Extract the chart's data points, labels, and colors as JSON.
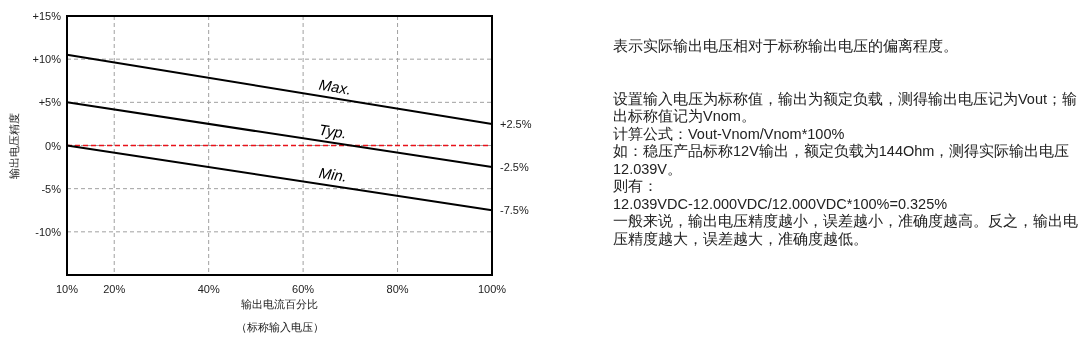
{
  "chart_data": {
    "type": "line",
    "xlabel": "输出电流百分比",
    "ylabel": "输出电压精度",
    "x": [
      10,
      100
    ],
    "series": [
      {
        "name": "Max.",
        "color": "#000000",
        "values": [
          10.5,
          2.5
        ],
        "value_labels": [
          null,
          "+2.5%"
        ]
      },
      {
        "name": "Typ.",
        "color": "#000000",
        "values": [
          5,
          -2.5
        ],
        "value_labels": [
          null,
          "-2.5%"
        ]
      },
      {
        "name": "Min.",
        "color": "#000000",
        "values": [
          0,
          -7.5
        ],
        "value_labels": [
          null,
          "-7.5%"
        ]
      }
    ],
    "xlim": [
      10,
      100
    ],
    "xticks": [
      {
        "value": 10,
        "label": "10%"
      },
      {
        "value": 20,
        "label": "20%"
      },
      {
        "value": 40,
        "label": "40%"
      },
      {
        "value": 60,
        "label": "60%"
      },
      {
        "value": 80,
        "label": "80%"
      },
      {
        "value": 100,
        "label": "100%"
      }
    ],
    "ylim": [
      -15,
      15
    ],
    "yticks": [
      {
        "value": 15,
        "label": "+15%"
      },
      {
        "value": 10,
        "label": "+10%"
      },
      {
        "value": 5,
        "label": "+5%"
      },
      {
        "value": 0,
        "label": "0%"
      },
      {
        "value": -5,
        "label": "-5%"
      },
      {
        "value": -10,
        "label": "-10%"
      }
    ],
    "grid": true,
    "line_style": "solid",
    "ref_lines": [
      {
        "axis": "y",
        "value": 0,
        "color": "#e8121a",
        "line_style": "dashed"
      }
    ],
    "annotations": [
      "（标称输入电压）",
      "表示实际输出电压相对于标称输出电压的偏离程度。",
      "设置输入电压为标称值，输出为额定负载，测得输出电压记为Vout；输出标称值记为Vnom。",
      "计算公式：Vout-Vnom/Vnom*100%",
      "如：稳压产品标称12V输出，额定负载为144Ohm，测得实际输出电压12.039V。",
      "则有：",
      "12.039VDC-12.000VDC/12.000VDC*100%=0.325%",
      "一般来说，输出电压精度越小，误差越小，准确度越高。反之，输出电压精度越大，误差越大，准确度越低。"
    ]
  }
}
